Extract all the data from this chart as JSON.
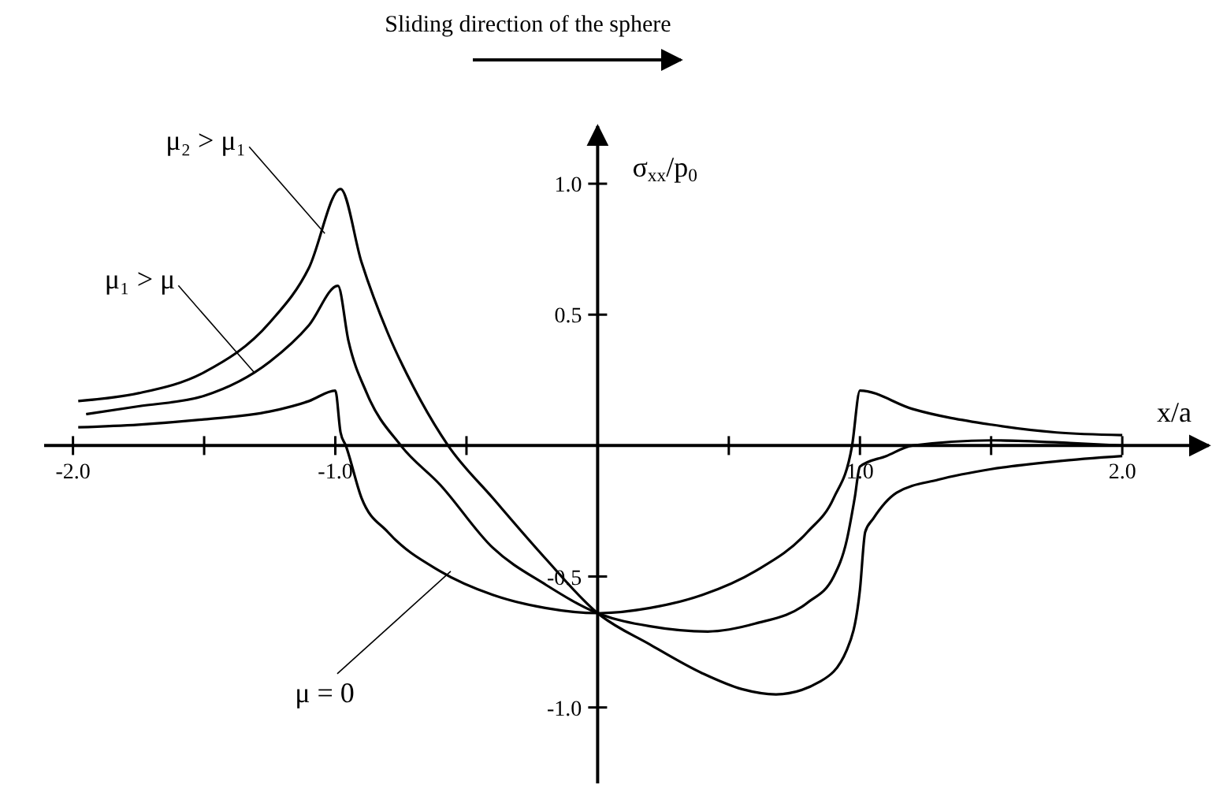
{
  "chart_data": {
    "type": "line",
    "title": "Sliding direction of the sphere",
    "xlabel": "x/a",
    "ylabel": "σ$_{xx}$/p$_{0}$",
    "xlim": [
      -2.11,
      2.33
    ],
    "ylim": [
      -1.29,
      1.22
    ],
    "xticks": [
      {
        "value": -2,
        "label": "-2.0"
      },
      {
        "value": -1.5,
        "label": null
      },
      {
        "value": -1,
        "label": "-1.0"
      },
      {
        "value": -0.5,
        "label": null
      },
      {
        "value": 0.5,
        "label": null
      },
      {
        "value": 1,
        "label": "1.0"
      },
      {
        "value": 1.5,
        "label": null
      },
      {
        "value": 2,
        "label": "2.0"
      }
    ],
    "yticks": [
      {
        "value": -1,
        "label": "-1.0"
      },
      {
        "value": -0.5,
        "label": "-0.5"
      },
      {
        "value": 0.5,
        "label": "0.5"
      },
      {
        "value": 1,
        "label": "1.0"
      }
    ],
    "series": [
      {
        "color": "#000000",
        "x": [
          -1.98,
          -1.75,
          -1.5,
          -1.25,
          -1.1,
          -1.0,
          -0.98,
          -0.96,
          -0.9,
          -0.8,
          -0.6,
          -0.4,
          -0.2,
          0,
          0.2,
          0.4,
          0.6,
          0.8,
          0.9,
          0.97,
          1.0,
          1.2,
          1.5,
          1.75,
          2.0
        ],
        "values": [
          0.07,
          0.08,
          0.1,
          0.13,
          0.17,
          0.21,
          0.05,
          0,
          -0.2,
          -0.33,
          -0.48,
          -0.57,
          -0.62,
          -0.64,
          -0.62,
          -0.57,
          -0.48,
          -0.33,
          -0.2,
          0,
          0.21,
          0.14,
          0.08,
          0.05,
          0.04
        ]
      },
      {
        "color": "#000000",
        "x": [
          -1.95,
          -1.75,
          -1.5,
          -1.25,
          -1.1,
          -0.99,
          -0.95,
          -0.88,
          -0.75,
          -0.6,
          -0.4,
          -0.2,
          0,
          0.2,
          0.42,
          0.6,
          0.8,
          0.9,
          0.95,
          0.98,
          1.0,
          1.1,
          1.2,
          1.5,
          1.8,
          2.0
        ],
        "values": [
          0.12,
          0.15,
          0.19,
          0.32,
          0.46,
          0.61,
          0.4,
          0.2,
          0,
          -0.15,
          -0.39,
          -0.53,
          -0.64,
          -0.69,
          -0.71,
          -0.68,
          -0.6,
          -0.5,
          -0.36,
          -0.2,
          -0.08,
          -0.04,
          0,
          0.02,
          0.01,
          0
        ]
      },
      {
        "color": "#000000",
        "x": [
          -1.98,
          -1.75,
          -1.5,
          -1.25,
          -1.1,
          -0.98,
          -0.9,
          -0.8,
          -0.7,
          -0.57,
          -0.4,
          -0.2,
          0,
          0.2,
          0.4,
          0.55,
          0.68,
          0.85,
          0.95,
          1.0,
          1.02,
          1.05,
          1.14,
          1.3,
          1.5,
          1.75,
          2.0
        ],
        "values": [
          0.17,
          0.2,
          0.28,
          0.47,
          0.68,
          0.98,
          0.7,
          0.43,
          0.22,
          0,
          -0.2,
          -0.43,
          -0.64,
          -0.76,
          -0.87,
          -0.93,
          -0.95,
          -0.9,
          -0.78,
          -0.55,
          -0.33,
          -0.28,
          -0.18,
          -0.13,
          -0.09,
          -0.06,
          -0.04
        ]
      }
    ],
    "annotations": [
      {
        "text": "μ₂ > μ₁",
        "x": -1.04,
        "y": 0.81
      },
      {
        "text": "μ₁ > μ",
        "x": -1.31,
        "y": 0.28
      },
      {
        "text": "μ = 0",
        "x": -0.56,
        "y": -0.48
      }
    ]
  }
}
